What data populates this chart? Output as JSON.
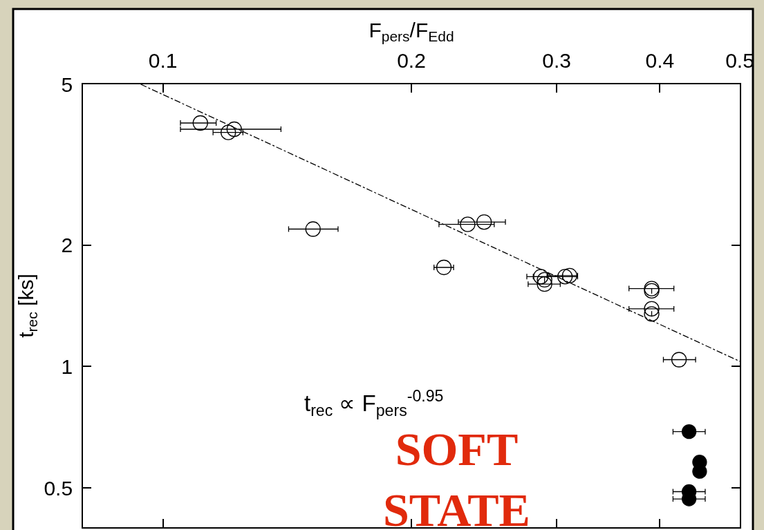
{
  "chart_data": {
    "type": "scatter",
    "xlabel": "F$_{pers}$/F$_{Edd}$",
    "ylabel": "t$_{rec}$ [ks]",
    "annotations": [
      "t$_{rec}$ ∝ F$_{pers}$$^{-0.95}$",
      "SOFT\nSTATE"
    ],
    "log": "xy",
    "xlim": [
      0.08,
      0.5
    ],
    "xticks": [
      0.1,
      0.2,
      0.3,
      0.4,
      0.5
    ],
    "ylim": [
      0.4,
      5
    ],
    "yticks": [
      0.5,
      1,
      2,
      5
    ],
    "series": [
      {
        "type": "scatter",
        "marker": "circle-open",
        "color": "#000000",
        "x": [
          0.111,
          0.12,
          0.122,
          0.152,
          0.234,
          0.245,
          0.219,
          0.287,
          0.29,
          0.29,
          0.307,
          0.311,
          0.391,
          0.391,
          0.391,
          0.391,
          0.422
        ],
        "values": [
          4.01,
          3.8,
          3.87,
          2.19,
          2.25,
          2.28,
          1.76,
          1.67,
          1.64,
          1.6,
          1.67,
          1.68,
          1.56,
          1.54,
          1.39,
          1.35,
          1.04
        ],
        "xerrors": [
          [
            0.105,
            0.116
          ],
          [
            0.115,
            0.125
          ],
          [
            0.105,
            0.139
          ],
          [
            0.142,
            0.163
          ],
          [
            0.216,
            0.252
          ],
          [
            0.228,
            0.26
          ],
          [
            0.213,
            0.225
          ],
          [
            0.276,
            0.305
          ],
          null,
          [
            0.277,
            0.303
          ],
          [
            0.281,
            0.318
          ],
          [
            0.292,
            0.318
          ],
          [
            0.367,
            0.416
          ],
          null,
          [
            0.367,
            0.416
          ],
          null,
          [
            0.404,
            0.442
          ]
        ]
      },
      {
        "type": "scatter",
        "marker": "circle",
        "color": "#000000",
        "x": [
          0.434,
          0.447,
          0.447,
          0.434,
          0.434
        ],
        "values": [
          0.69,
          0.58,
          0.55,
          0.49,
          0.47
        ],
        "xerrors": [
          [
            0.415,
            0.454
          ],
          null,
          null,
          [
            0.415,
            0.454
          ],
          [
            0.415,
            0.454
          ]
        ]
      },
      {
        "type": "line",
        "line_style": "dashdot",
        "color": "#000000",
        "x": [
          0.094,
          0.5
        ],
        "values": [
          5,
          1.03
        ]
      }
    ]
  }
}
